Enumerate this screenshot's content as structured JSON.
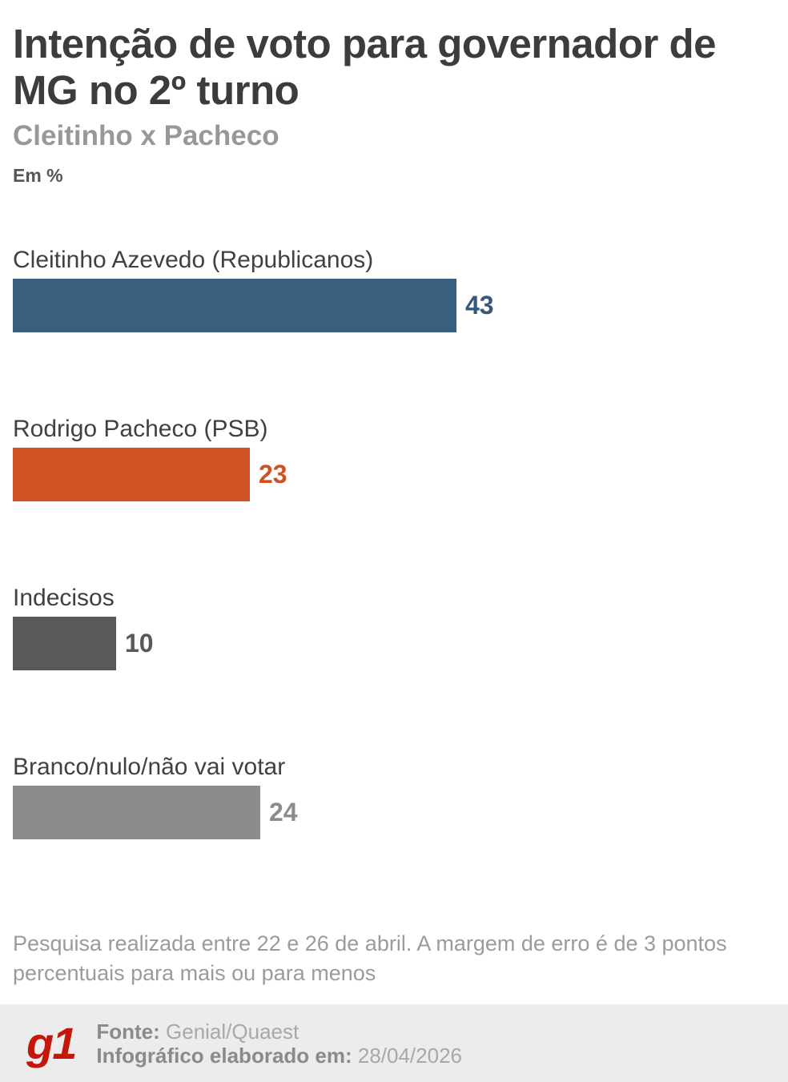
{
  "header": {
    "title": "Intenção de voto para governador de MG no 2º turno",
    "subtitle": "Cleitinho x Pacheco",
    "unit_label": "Em %"
  },
  "chart_data": {
    "type": "bar",
    "orientation": "horizontal",
    "title": "Intenção de voto para governador de MG no 2º turno",
    "subtitle": "Cleitinho x Pacheco",
    "unit": "%",
    "categories": [
      "Cleitinho Azevedo (Republicanos)",
      "Rodrigo Pacheco (PSB)",
      "Indecisos",
      "Branco/nulo/não vai votar"
    ],
    "values": [
      43,
      23,
      10,
      24
    ],
    "bar_colors": [
      "#3b607f",
      "#d05222",
      "#595959",
      "#8c8c8c"
    ],
    "value_label_colors": [
      "#36597b",
      "#d05222",
      "#595959",
      "#8c8c8c"
    ],
    "xlim": [
      0,
      43
    ],
    "grid": false,
    "legend": false,
    "value_labels_shown": true
  },
  "footnote": "Pesquisa realizada entre 22 e 26 de abril. A margem de erro é de 3 pontos percentuais para mais ou para menos",
  "footer": {
    "logo_text": "g1",
    "logo_color": "#c4170c",
    "background_color": "#ececec",
    "source_label": "Fonte:",
    "source_value": "Genial/Quaest",
    "infographic_label": "Infográfico elaborado em:",
    "infographic_value": "28/04/2026"
  }
}
